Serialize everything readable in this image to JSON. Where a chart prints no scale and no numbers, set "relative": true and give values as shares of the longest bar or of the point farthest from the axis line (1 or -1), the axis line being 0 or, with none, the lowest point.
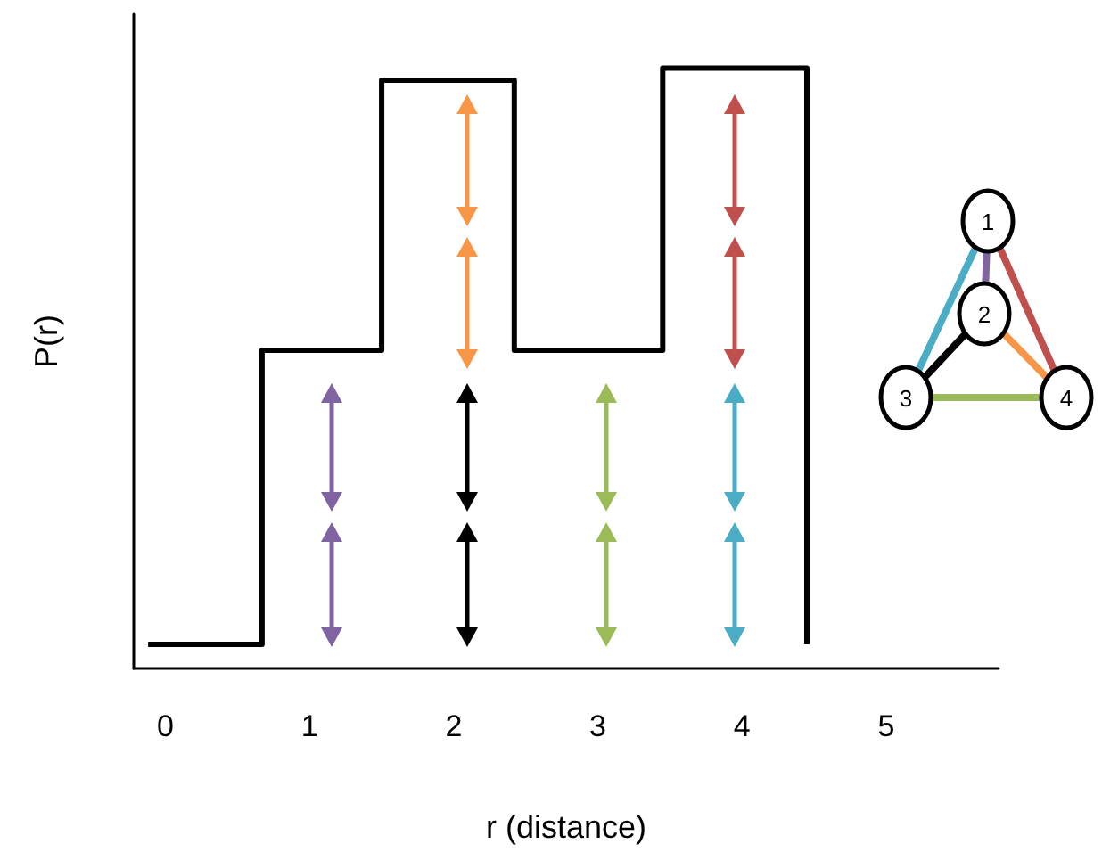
{
  "chart_data": {
    "type": "step",
    "relative": true,
    "xlabel": "r (distance)",
    "ylabel": "P(r)",
    "x": [
      -0.12,
      0.67,
      1.5,
      2.42,
      3.45,
      4.45
    ],
    "values": [
      0.04,
      0.53,
      0.98,
      0.53,
      1,
      0.04
    ],
    "color": "#000000",
    "xlim": [
      -0.22,
      5.78
    ],
    "xticks": [
      0,
      1,
      2,
      3,
      4,
      5
    ],
    "marker": "none",
    "line_style": "solid",
    "annotations": [
      "1",
      "2",
      "3",
      "4"
    ]
  }
}
